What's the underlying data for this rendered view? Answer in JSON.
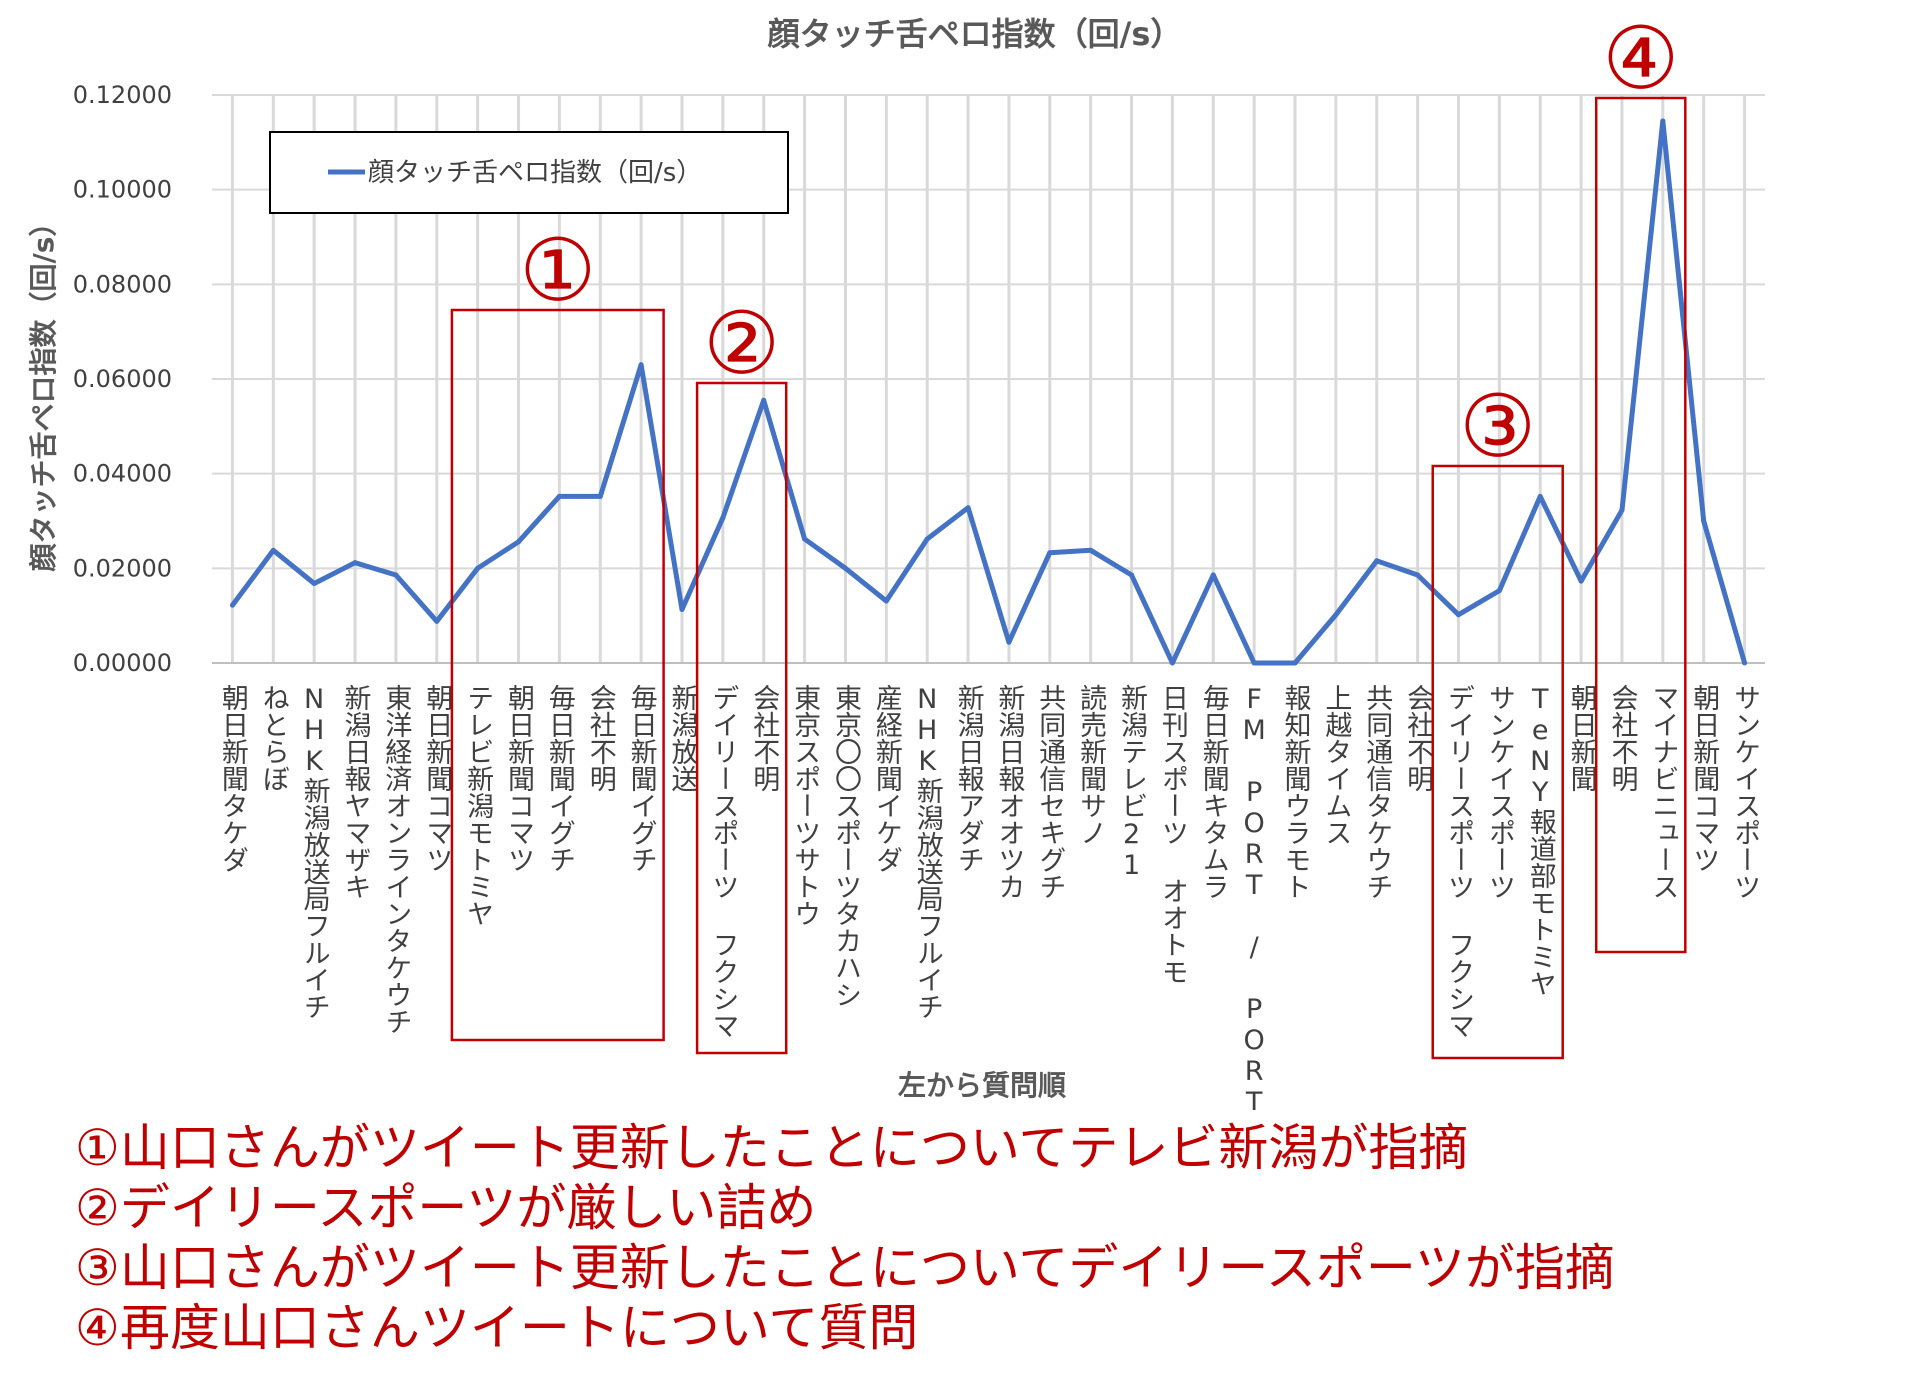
{
  "chart_data": {
    "type": "line",
    "title": "顔タッチ舌ペロ指数（回/s）",
    "xlabel": "左から質問順",
    "ylabel": "顔タッチ舌ペロ指数（回/s）",
    "ylim": [
      0,
      0.12
    ],
    "yticks": [
      "0.00000",
      "0.02000",
      "0.04000",
      "0.06000",
      "0.08000",
      "0.10000",
      "0.12000"
    ],
    "grid": true,
    "legend_position": "top-left",
    "series": [
      {
        "name": "顔タッチ舌ペロ指数（回/s）",
        "color": "#4472c4",
        "values": [
          0.0122,
          0.0238,
          0.0168,
          0.0212,
          0.0186,
          0.0088,
          0.02,
          0.0256,
          0.0352,
          0.0352,
          0.063,
          0.0113,
          0.0307,
          0.0555,
          0.0262,
          0.02,
          0.0131,
          0.0262,
          0.0328,
          0.0044,
          0.0233,
          0.0238,
          0.0186,
          0.0,
          0.0186,
          0.0,
          0.0,
          0.0102,
          0.0216,
          0.0186,
          0.0102,
          0.0153,
          0.0352,
          0.0173,
          0.0323,
          0.1145,
          0.03,
          0.0
        ]
      }
    ],
    "categories": [
      "朝日新聞タケダ",
      "ねとらぼ",
      "NHK新潟放送局フルイチ",
      "新潟日報ヤマザキ",
      "東洋経済オンラインタケウチ",
      "朝日新聞コマツ",
      "テレビ新潟モトミヤ",
      "朝日新聞コマツ",
      "毎日新聞イグチ",
      "会社不明",
      "毎日新聞イグチ",
      "新潟放送",
      "デイリースポーツ フクシマ",
      "会社不明",
      "東京スポーツサトウ",
      "東京〇〇スポーツタカハシ",
      "産経新聞イケダ",
      "NHK新潟放送局フルイチ",
      "新潟日報アダチ",
      "新潟日報オオツカ",
      "共同通信セキグチ",
      "読売新聞サノ",
      "新潟テレビ21",
      "日刊スポーツ オオトモ",
      "毎日新聞キタムラ",
      "FM PORT / PORT DE NGT",
      "報知新聞ウラモト",
      "上越タイムス",
      "共同通信タケウチ",
      "会社不明",
      "デイリースポーツ フクシマ",
      "サンケイスポーツ",
      "TeNY報道部モトミヤ",
      "朝日新聞",
      "会社不明",
      "マイナビニュース",
      "朝日新聞コマツ",
      "サンケイスポーツ"
    ],
    "annotations": [
      {
        "label": "①",
        "from_index": 6,
        "to_index": 10
      },
      {
        "label": "②",
        "from_index": 12,
        "to_index": 13
      },
      {
        "label": "③",
        "from_index": 30,
        "to_index": 32
      },
      {
        "label": "④",
        "from_index": 34,
        "to_index": 35
      }
    ]
  },
  "notes": [
    "①山口さんがツイート更新したことについてテレビ新潟が指摘",
    "②デイリースポーツが厳しい詰め",
    "③山口さんがツイート更新したことについてデイリースポーツが指摘",
    "④再度山口さんツイートについて質問"
  ],
  "colors": {
    "line": "#4472c4",
    "annotation": "#c00000",
    "grid": "#d9d9d9",
    "text": "#595959"
  }
}
